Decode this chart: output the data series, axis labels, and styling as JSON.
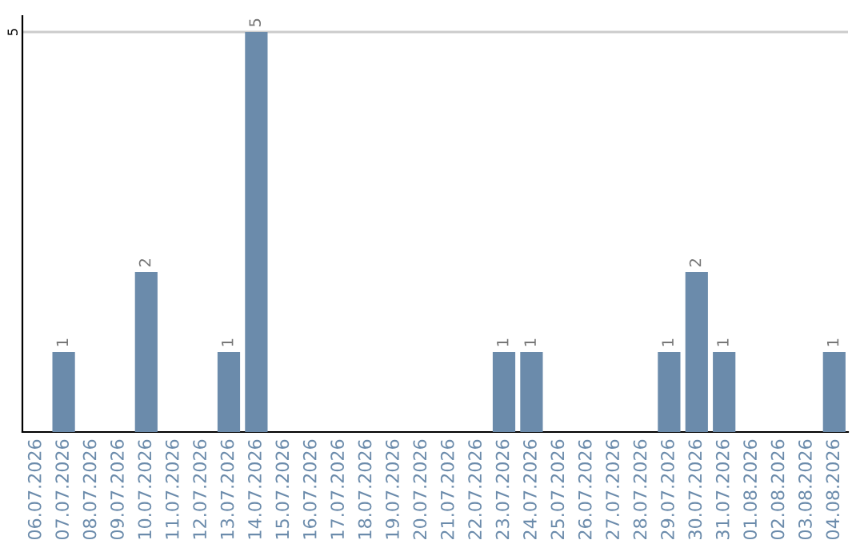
{
  "chart_data": {
    "type": "bar",
    "categories": [
      "06.07.2026",
      "07.07.2026",
      "08.07.2026",
      "09.07.2026",
      "10.07.2026",
      "11.07.2026",
      "12.07.2026",
      "13.07.2026",
      "14.07.2026",
      "15.07.2026",
      "16.07.2026",
      "17.07.2026",
      "18.07.2026",
      "19.07.2026",
      "20.07.2026",
      "21.07.2026",
      "22.07.2026",
      "23.07.2026",
      "24.07.2026",
      "25.07.2026",
      "26.07.2026",
      "27.07.2026",
      "28.07.2026",
      "29.07.2026",
      "30.07.2026",
      "31.07.2026",
      "01.08.2026",
      "02.08.2026",
      "03.08.2026",
      "04.08.2026"
    ],
    "values": [
      0,
      1,
      0,
      0,
      2,
      0,
      0,
      1,
      5,
      0,
      0,
      0,
      0,
      0,
      0,
      0,
      0,
      1,
      1,
      0,
      0,
      0,
      0,
      1,
      2,
      1,
      0,
      0,
      0,
      1
    ],
    "value_labels": [
      null,
      "1",
      null,
      null,
      "2",
      null,
      null,
      "1",
      "5",
      null,
      null,
      null,
      null,
      null,
      null,
      null,
      null,
      "1",
      "1",
      null,
      null,
      null,
      null,
      "1",
      "2",
      "1",
      null,
      null,
      null,
      "1"
    ],
    "color": "#6b8bab",
    "ylim": [
      0,
      5.2
    ],
    "yticks": [
      5
    ],
    "grid": "y"
  }
}
